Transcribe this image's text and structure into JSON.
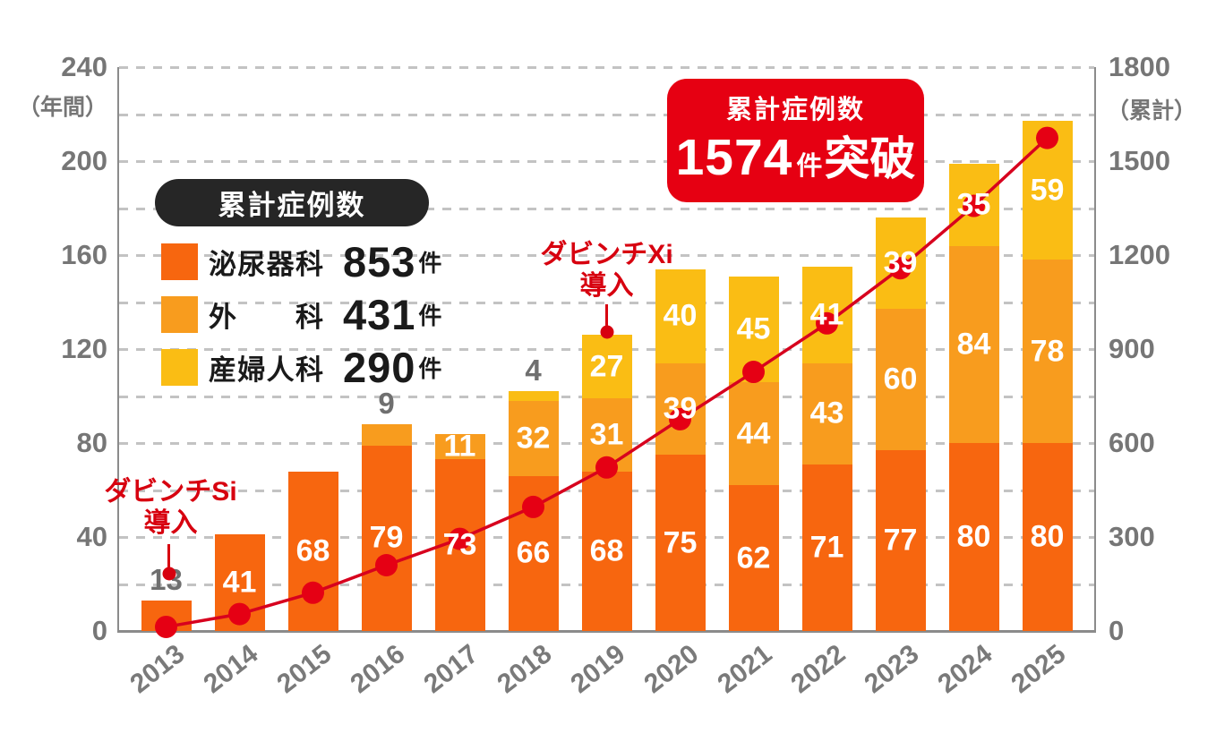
{
  "chart_data": {
    "type": "bar",
    "subtype": "stacked-bars-with-cumulative-line",
    "categories": [
      "2013",
      "2014",
      "2015",
      "2016",
      "2017",
      "2018",
      "2019",
      "2020",
      "2021",
      "2022",
      "2023",
      "2024",
      "2025"
    ],
    "series": [
      {
        "name": "泌尿器科",
        "color": "#f7660f",
        "values": [
          13,
          41,
          68,
          79,
          73,
          66,
          68,
          75,
          62,
          71,
          77,
          80,
          80
        ]
      },
      {
        "name": "外科",
        "color": "#f89c1e",
        "values": [
          0,
          0,
          0,
          9,
          11,
          32,
          31,
          39,
          44,
          43,
          60,
          84,
          78
        ]
      },
      {
        "name": "産婦人科",
        "color": "#fabd14",
        "values": [
          0,
          0,
          0,
          0,
          0,
          4,
          27,
          40,
          45,
          41,
          39,
          35,
          59
        ]
      }
    ],
    "line": {
      "name": "累計症例数",
      "color": "#d7001e",
      "dot_color": "#e50014",
      "values": [
        13,
        54,
        122,
        210,
        294,
        396,
        522,
        676,
        827,
        982,
        1158,
        1357,
        1574
      ]
    },
    "left_axis": {
      "unit_label": "（年間）",
      "ticks": [
        240,
        200,
        160,
        120,
        80,
        40,
        0
      ],
      "max": 240,
      "grid_step": 20
    },
    "right_axis": {
      "unit_label": "（累計）",
      "ticks": [
        1800,
        1500,
        1200,
        900,
        600,
        300,
        0
      ],
      "max": 1800
    },
    "outside_value_labels": [
      [
        0,
        0
      ],
      [
        3,
        1
      ],
      [
        5,
        2
      ]
    ],
    "grid": "dashed-horizontal"
  },
  "legend": {
    "title": "累計症例数",
    "items": [
      {
        "label": "泌尿器科",
        "value": "853",
        "unit": "件"
      },
      {
        "label": "外科",
        "value": "431",
        "unit": "件"
      },
      {
        "label": "産婦人科",
        "value": "290",
        "unit": "件"
      }
    ]
  },
  "badge": {
    "title": "累計症例数",
    "value": "1574",
    "unit": "件",
    "suffix": "突破",
    "color": "#e60012"
  },
  "annotations": {
    "si": {
      "line1": "ダビンチSi",
      "line2": "導入"
    },
    "xi": {
      "line1": "ダビンチXi",
      "line2": "導入"
    }
  }
}
